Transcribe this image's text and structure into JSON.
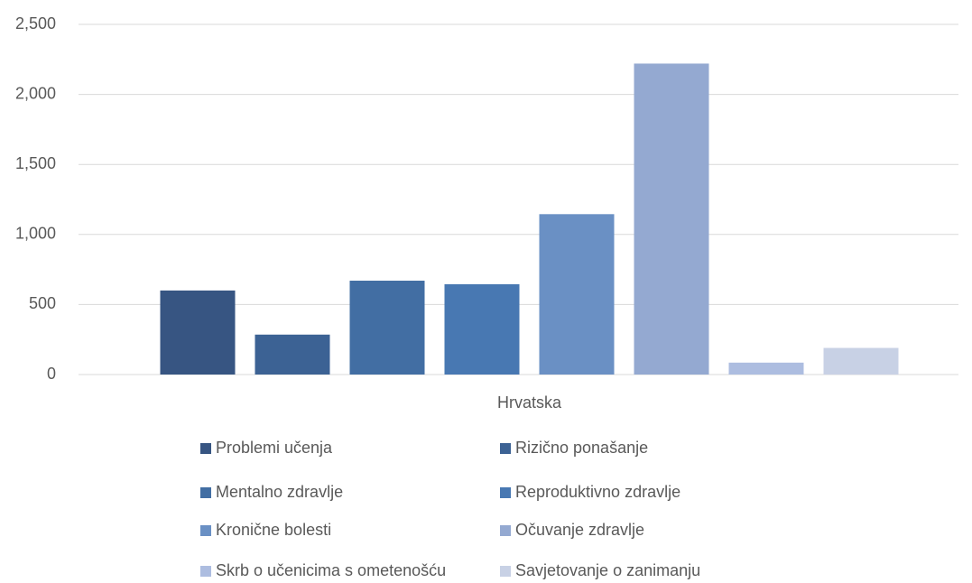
{
  "chart_data": {
    "type": "bar",
    "categories": [
      "Hrvatska"
    ],
    "series": [
      {
        "name": "Problemi učenja",
        "color": "#375582",
        "values": [
          600
        ]
      },
      {
        "name": "Rizično ponašanje",
        "color": "#3c6294",
        "values": [
          285
        ]
      },
      {
        "name": "Mentalno zdravlje",
        "color": "#426ea3",
        "values": [
          670
        ]
      },
      {
        "name": "Reproduktivno zdravlje",
        "color": "#4878b2",
        "values": [
          645
        ]
      },
      {
        "name": "Kronične bolesti",
        "color": "#6a90c4",
        "values": [
          1145
        ]
      },
      {
        "name": "Očuvanje zdravlje",
        "color": "#94a9d1",
        "values": [
          2220
        ]
      },
      {
        "name": "Skrb o učenicima s ometenošću",
        "color": "#adbde0",
        "values": [
          85
        ]
      },
      {
        "name": "Savjetovanje o zanimanju",
        "color": "#c8d1e5",
        "values": [
          190
        ]
      }
    ],
    "ylim": [
      0,
      2500
    ],
    "yticks": [
      0,
      500,
      {
        "value": 1000,
        "label": "1,000"
      },
      {
        "value": 1500,
        "label": "1,500"
      },
      {
        "value": 2000,
        "label": "2,000"
      },
      {
        "value": 2500,
        "label": "2,500"
      }
    ],
    "grid": true,
    "legend": "bottom"
  }
}
